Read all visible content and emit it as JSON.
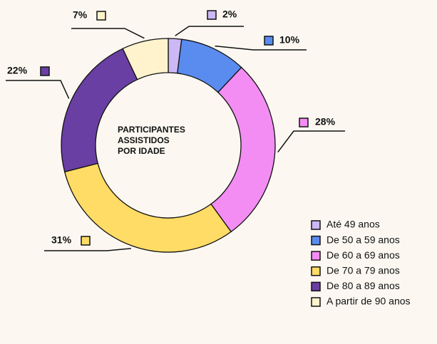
{
  "chart_data": {
    "type": "donut",
    "title": "PARTICIPANTES ASSISTIDOS POR IDADE",
    "categories": [
      "Até 49 anos",
      "De 50 a 59 anos",
      "De 60 a 69 anos",
      "De 70 a 79 anos",
      "De 80 a 89 anos",
      "A partir de 90 anos"
    ],
    "values": [
      2,
      10,
      28,
      31,
      22,
      7
    ],
    "value_labels": [
      "2%",
      "10%",
      "28%",
      "31%",
      "22%",
      "7%"
    ],
    "colors": [
      "#cbb8f4",
      "#5a8cf0",
      "#f38df4",
      "#ffdc66",
      "#6a3fa3",
      "#fff3cd"
    ],
    "legend": "bottom-right"
  }
}
